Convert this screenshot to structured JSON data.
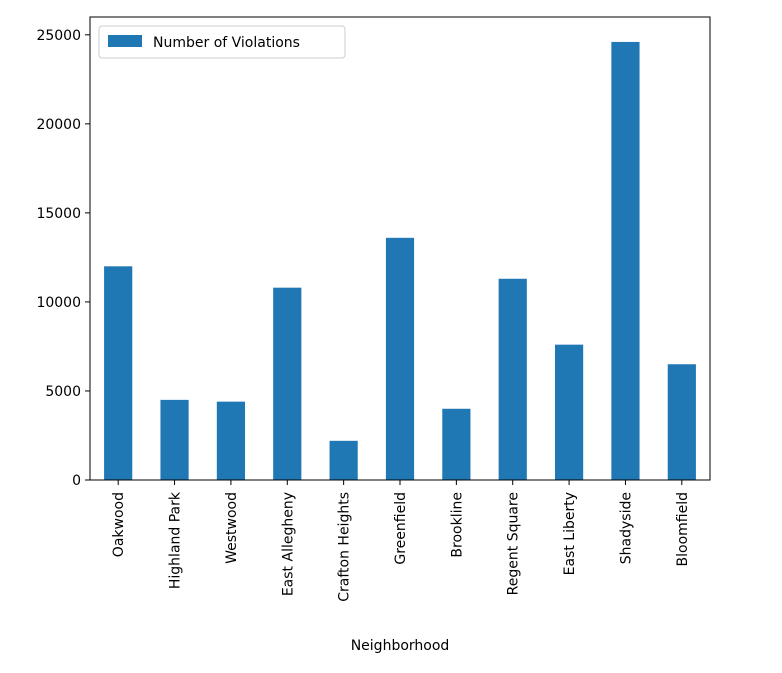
{
  "chart_data": {
    "type": "bar",
    "categories": [
      "Oakwood",
      "Highland Park",
      "Westwood",
      "East Allegheny",
      "Crafton Heights",
      "Greenfield",
      "Brookline",
      "Regent Square",
      "East Liberty",
      "Shadyside",
      "Bloomfield"
    ],
    "series": [
      {
        "name": "Number of Violations",
        "values": [
          12000,
          4500,
          4400,
          10800,
          2200,
          13600,
          4000,
          11300,
          7600,
          24600,
          6500
        ]
      }
    ],
    "xlabel": "Neighborhood",
    "ylabel": "",
    "ylim": [
      0,
      26000
    ],
    "yticks": [
      0,
      5000,
      10000,
      15000,
      20000,
      25000
    ],
    "legend": "top-left",
    "grid": false,
    "bar_color": "#1f77b4"
  }
}
